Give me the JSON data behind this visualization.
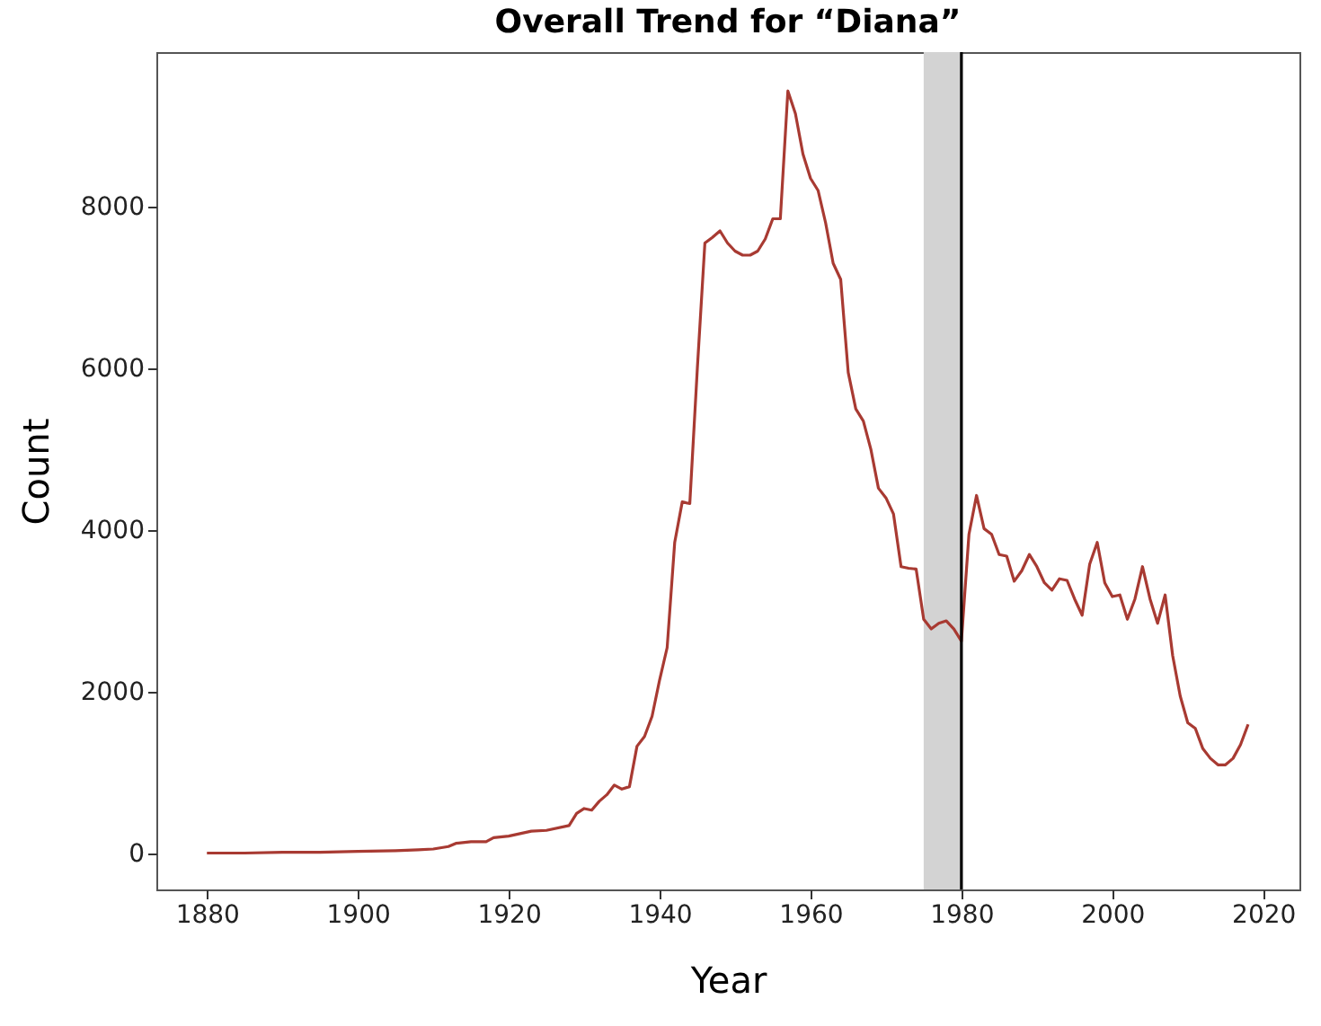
{
  "chart_data": {
    "type": "line",
    "title": "Overall Trend for “Diana”",
    "xlabel": "Year",
    "ylabel": "Count",
    "x": [
      1880,
      1885,
      1890,
      1895,
      1900,
      1905,
      1908,
      1910,
      1912,
      1913,
      1915,
      1917,
      1918,
      1920,
      1923,
      1925,
      1928,
      1929,
      1930,
      1931,
      1932,
      1933,
      1934,
      1935,
      1936,
      1937,
      1938,
      1939,
      1940,
      1941,
      1942,
      1943,
      1944,
      1945,
      1946,
      1947,
      1948,
      1949,
      1950,
      1951,
      1952,
      1953,
      1954,
      1955,
      1956,
      1957,
      1958,
      1959,
      1960,
      1961,
      1962,
      1963,
      1964,
      1965,
      1966,
      1967,
      1968,
      1969,
      1970,
      1971,
      1972,
      1973,
      1974,
      1975,
      1976,
      1977,
      1978,
      1979,
      1980,
      1981,
      1982,
      1983,
      1984,
      1985,
      1986,
      1987,
      1988,
      1989,
      1990,
      1991,
      1992,
      1993,
      1994,
      1995,
      1996,
      1997,
      1998,
      1999,
      2000,
      2001,
      2002,
      2003,
      2004,
      2005,
      2006,
      2007,
      2008,
      2009,
      2010,
      2011,
      2012,
      2013,
      2014,
      2015,
      2016,
      2017,
      2018
    ],
    "series": [
      {
        "color": "#a83a32",
        "values": [
          10,
          10,
          20,
          20,
          30,
          40,
          50,
          60,
          90,
          130,
          150,
          150,
          200,
          220,
          280,
          290,
          350,
          500,
          560,
          540,
          650,
          730,
          850,
          800,
          830,
          1330,
          1450,
          1700,
          2150,
          2550,
          3850,
          4350,
          4330,
          6000,
          7550,
          7620,
          7700,
          7550,
          7450,
          7400,
          7400,
          7450,
          7600,
          7850,
          7850,
          9430,
          9150,
          8650,
          8350,
          8200,
          7800,
          7300,
          7100,
          5950,
          5500,
          5350,
          5000,
          4520,
          4400,
          4200,
          3550,
          3530,
          3520,
          2900,
          2780,
          2850,
          2880,
          2780,
          2630,
          3950,
          4430,
          4020,
          3950,
          3700,
          3680,
          3370,
          3500,
          3700,
          3550,
          3350,
          3260,
          3400,
          3380,
          3150,
          2950,
          3580,
          3850,
          3350,
          3180,
          3200,
          2900,
          3150,
          3550,
          3150,
          2850,
          3200,
          2450,
          1950,
          1620,
          1550,
          1300,
          1180,
          1100,
          1100,
          1180,
          1350,
          1600
        ]
      }
    ],
    "xlim": [
      1873.3,
      2024.8
    ],
    "xticks": [
      1880,
      1900,
      1920,
      1940,
      1960,
      1980,
      2000,
      2020
    ],
    "ylim": [
      -440,
      9910
    ],
    "yticks": [
      0,
      2000,
      4000,
      6000,
      8000
    ],
    "grid": false,
    "bands": [
      {
        "axis": "x",
        "from": 1975,
        "to": 1980,
        "color": "#d3d3d3"
      }
    ],
    "ref_lines": [
      {
        "axis": "x",
        "value": 1980,
        "color": "#000000"
      }
    ]
  }
}
